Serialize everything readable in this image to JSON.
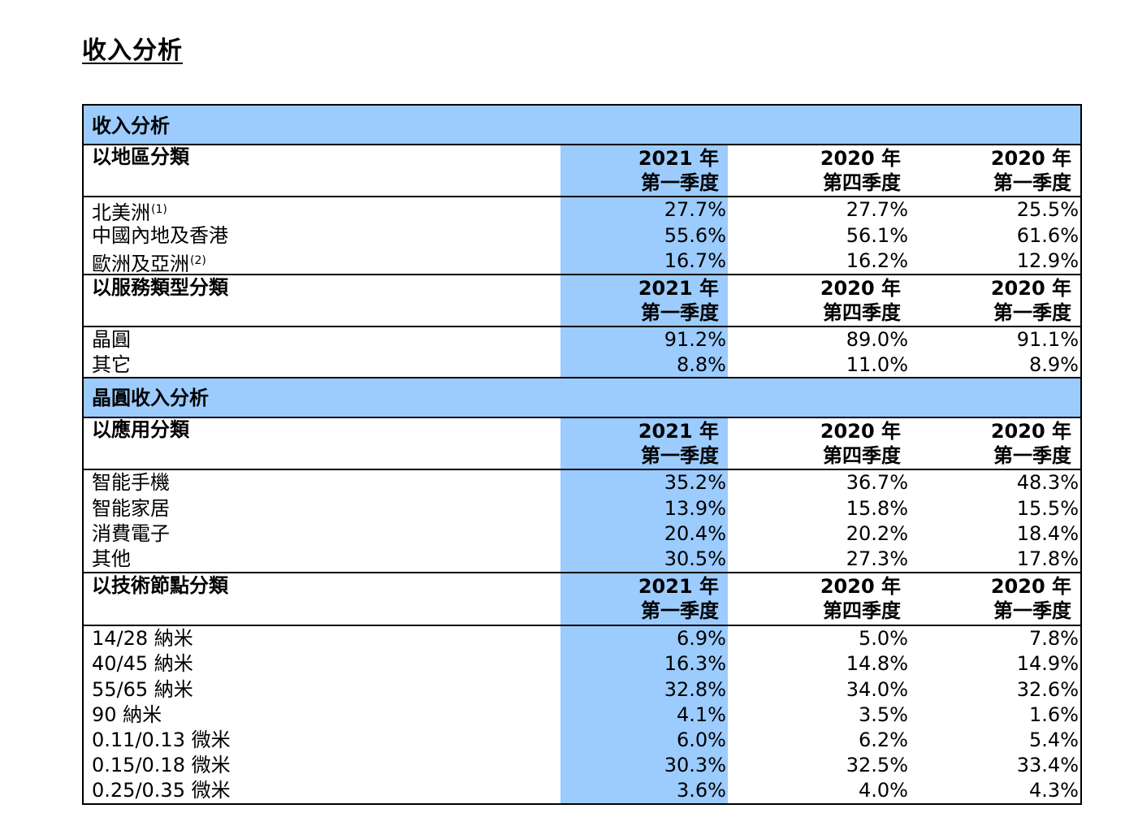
{
  "page_title": "收入分析",
  "section_revenue": "收入分析",
  "section_wafer": "晶圓收入分析",
  "header": {
    "col1_year": "2021 年",
    "col1_quarter": "第一季度",
    "col2_year": "2020 年",
    "col2_quarter": "第四季度",
    "col3_year": "2020 年",
    "col3_quarter": "第一季度"
  },
  "groups": {
    "region": {
      "label": "以地區分類",
      "rows": [
        {
          "label": "北美洲",
          "note": "(1)",
          "values": [
            "27.7%",
            "27.7%",
            "25.5%"
          ]
        },
        {
          "label": "中國內地及香港",
          "note": "",
          "values": [
            "55.6%",
            "56.1%",
            "61.6%"
          ]
        },
        {
          "label": "歐洲及亞洲",
          "note": "(2)",
          "values": [
            "16.7%",
            "16.2%",
            "12.9%"
          ]
        }
      ]
    },
    "service": {
      "label": "以服務類型分類",
      "rows": [
        {
          "label": "晶圓",
          "values": [
            "91.2%",
            "89.0%",
            "91.1%"
          ]
        },
        {
          "label": "其它",
          "values": [
            "8.8%",
            "11.0%",
            "8.9%"
          ]
        }
      ]
    },
    "application": {
      "label": "以應用分類",
      "rows": [
        {
          "label": "智能手機",
          "values": [
            "35.2%",
            "36.7%",
            "48.3%"
          ]
        },
        {
          "label": "智能家居",
          "values": [
            "13.9%",
            "15.8%",
            "15.5%"
          ]
        },
        {
          "label": "消費電子",
          "values": [
            "20.4%",
            "20.2%",
            "18.4%"
          ]
        },
        {
          "label": "其他",
          "values": [
            "30.5%",
            "27.3%",
            "17.8%"
          ]
        }
      ]
    },
    "node": {
      "label": "以技術節點分類",
      "rows": [
        {
          "label": "14/28 納米",
          "values": [
            "6.9%",
            "5.0%",
            "7.8%"
          ]
        },
        {
          "label": "40/45  納米",
          "values": [
            "16.3%",
            "14.8%",
            "14.9%"
          ]
        },
        {
          "label": "55/65  納米",
          "values": [
            "32.8%",
            "34.0%",
            "32.6%"
          ]
        },
        {
          "label": "90  納米",
          "values": [
            "4.1%",
            "3.5%",
            "1.6%"
          ]
        },
        {
          "label": "0.11/0.13 微米",
          "values": [
            "6.0%",
            "6.2%",
            "5.4%"
          ]
        },
        {
          "label": "0.15/0.18 微米",
          "values": [
            "30.3%",
            "32.5%",
            "33.4%"
          ]
        },
        {
          "label": "0.25/0.35 微米",
          "values": [
            "3.6%",
            "4.0%",
            "4.3%"
          ]
        }
      ]
    }
  },
  "colors": {
    "highlight": "#9ccbfd"
  }
}
